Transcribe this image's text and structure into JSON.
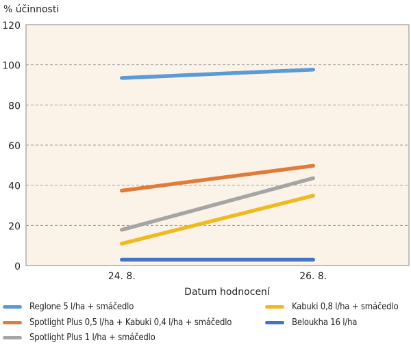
{
  "chart_data": {
    "type": "line",
    "ylabel": "% účinnosti",
    "xlabel": "Datum hodnocení",
    "categories": [
      "24. 8.",
      "26. 8."
    ],
    "ylim": [
      0,
      120
    ],
    "yticks": [
      0,
      20,
      40,
      60,
      80,
      100,
      120
    ],
    "grid": "horizontal dashed",
    "legend_placement": "bottom",
    "plot_background": "#fbf3e8",
    "series": [
      {
        "name": "Reglone 5 l/ha + smáčedlo",
        "values": [
          93.4,
          97.6
        ],
        "color": "#5b9bd5"
      },
      {
        "name": "Spotlight Plus 0,5 l/ha + Kabuki 0,4 l/ha + smáčedlo",
        "values": [
          37.3,
          49.7
        ],
        "color": "#e07b39"
      },
      {
        "name": "Spotlight Plus 1 l/ha + smáčedlo",
        "values": [
          17.8,
          43.5
        ],
        "color": "#a5a5a5"
      },
      {
        "name": "Kabuki 0,8 l/ha + smáčedlo",
        "values": [
          10.9,
          34.8
        ],
        "color": "#f0b922"
      },
      {
        "name": "Beloukha 16 l/ha",
        "values": [
          2.9,
          2.9
        ],
        "color": "#4472c4"
      }
    ]
  }
}
